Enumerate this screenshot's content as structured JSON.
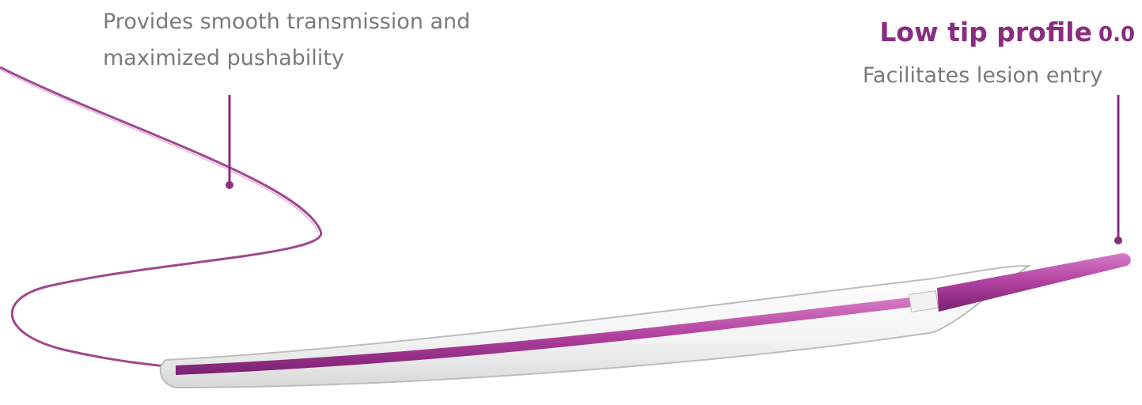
{
  "left_callout": {
    "lines": [
      "Provides smooth transmission and",
      "maximized pushability"
    ]
  },
  "right_callout": {
    "title": "Low tip profile",
    "value": "0.0",
    "description": "Facilitates lesion entry"
  }
}
